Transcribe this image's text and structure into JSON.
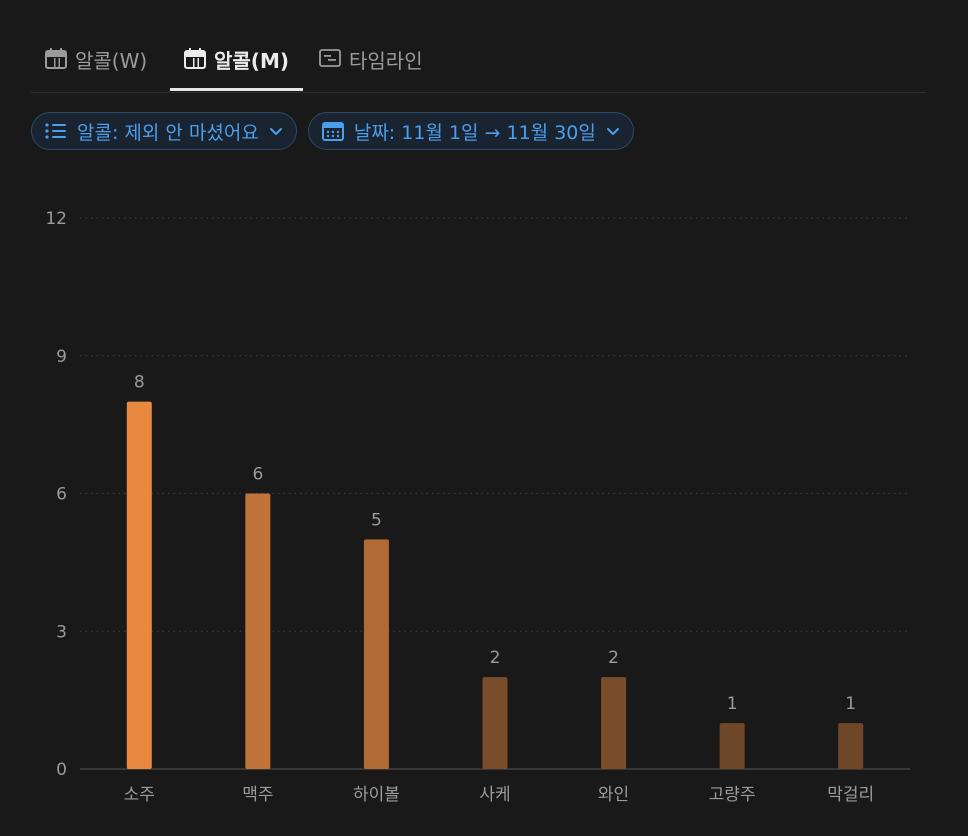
{
  "tabs": [
    {
      "label": "알콜(W)",
      "icon": "calendar-icon",
      "active": false
    },
    {
      "label": "알콜(M)",
      "icon": "calendar-icon",
      "active": true
    },
    {
      "label": "타임라인",
      "icon": "timeline-icon",
      "active": false
    }
  ],
  "filters": {
    "alcohol": {
      "label": "알콜: 제외 안 마셨어요",
      "icon": "list-icon"
    },
    "date": {
      "label": "날짜: 11월 1일 → 11월 30일",
      "icon": "calendar-icon"
    }
  },
  "colors": {
    "accent": "#4a9eec",
    "bars": [
      "#e8893f",
      "#c1743a",
      "#b26a34",
      "#7a4d2a",
      "#7a4d2a",
      "#6e4628",
      "#6e4628"
    ]
  },
  "chart_data": {
    "type": "bar",
    "categories": [
      "소주",
      "맥주",
      "하이볼",
      "사케",
      "와인",
      "고량주",
      "막걸리"
    ],
    "values": [
      8,
      6,
      5,
      2,
      2,
      1,
      1
    ],
    "yticks": [
      0,
      3,
      6,
      9,
      12
    ],
    "ylim": [
      0,
      12
    ],
    "grid": true,
    "data_labels": true
  }
}
